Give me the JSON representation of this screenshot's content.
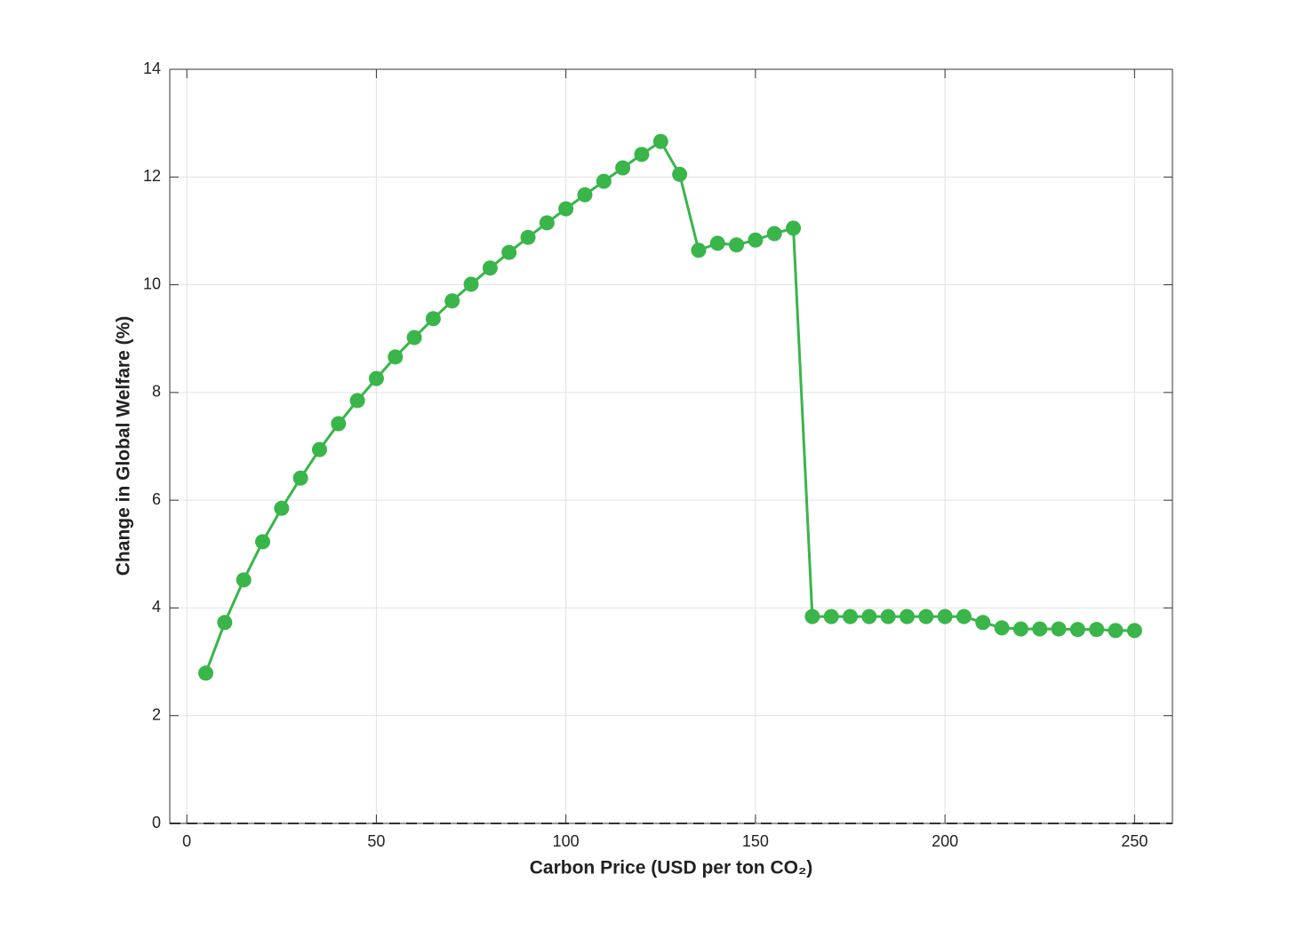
{
  "chart_data": {
    "type": "line",
    "x_label": "Carbon Price (USD per ton CO₂)",
    "y_label": "Change in Global Welfare (%)",
    "x": [
      5,
      10,
      15,
      20,
      25,
      30,
      35,
      40,
      45,
      50,
      55,
      60,
      65,
      70,
      75,
      80,
      85,
      90,
      95,
      100,
      105,
      110,
      115,
      120,
      125,
      130,
      135,
      140,
      145,
      150,
      155,
      160,
      165,
      170,
      175,
      180,
      185,
      190,
      195,
      200,
      205,
      210,
      215,
      220,
      225,
      230,
      235,
      240,
      245,
      250
    ],
    "series": [
      {
        "color": "#39b54a",
        "values": [
          2.79,
          3.73,
          4.52,
          5.23,
          5.85,
          6.41,
          6.94,
          7.42,
          7.85,
          8.26,
          8.66,
          9.02,
          9.37,
          9.7,
          10.01,
          10.31,
          10.6,
          10.88,
          11.15,
          11.41,
          11.67,
          11.92,
          12.17,
          12.42,
          12.66,
          12.05,
          10.64,
          10.77,
          10.74,
          10.83,
          10.95,
          11.05,
          3.84,
          3.84,
          3.84,
          3.84,
          3.84,
          3.84,
          3.84,
          3.84,
          3.84,
          3.73,
          3.63,
          3.61,
          3.61,
          3.61,
          3.6,
          3.6,
          3.58,
          3.58
        ]
      }
    ],
    "xlim": [
      -4.5,
      260
    ],
    "ylim": [
      0,
      14
    ],
    "xticks": [
      0,
      50,
      100,
      150,
      200,
      250
    ],
    "yticks": [
      0,
      2,
      4,
      6,
      8,
      10,
      12,
      14
    ],
    "reference_line": 0,
    "grid": true
  }
}
